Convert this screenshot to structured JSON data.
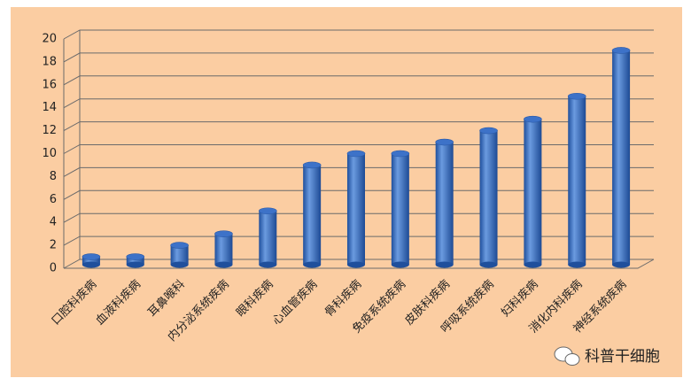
{
  "chart_data": {
    "type": "bar",
    "categories": [
      "口腔科疾病",
      "血液科疾病",
      "耳鼻喉科",
      "内分泌系统疾病",
      "眼科疾病",
      "心血管疾病",
      "骨科疾病",
      "免疫系统疾病",
      "皮肤科疾病",
      "呼吸系统疾病",
      "妇科疾病",
      "消化内科疾病",
      "神经系统疾病"
    ],
    "values": [
      1,
      1,
      2,
      3,
      5,
      9,
      10,
      10,
      11,
      12,
      13,
      15,
      19
    ],
    "color": "#3d72c8",
    "ylim": [
      0,
      20
    ],
    "yticks": [
      0,
      2,
      4,
      6,
      8,
      10,
      12,
      14,
      16,
      18,
      20
    ],
    "grid": true
  },
  "watermark": "科普干细胞"
}
